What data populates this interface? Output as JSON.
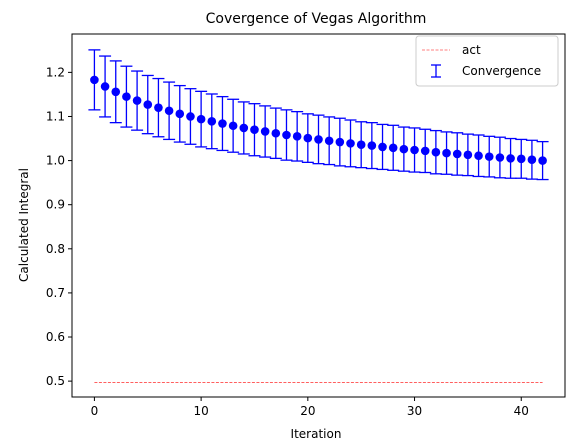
{
  "chart_data": {
    "type": "scatter",
    "title": "Covergence of Vegas Algorithm",
    "xlabel": "Iteration",
    "ylabel": "Calculated Integral",
    "xlim": [
      -2.1,
      44.1
    ],
    "ylim": [
      0.464,
      1.287
    ],
    "xticks": [
      0,
      10,
      20,
      30,
      40
    ],
    "yticks": [
      0.5,
      0.6,
      0.7,
      0.8,
      0.9,
      1.0,
      1.1,
      1.2
    ],
    "ytick_labels": [
      "0.5",
      "0.6",
      "0.7",
      "0.8",
      "0.9",
      "1.0",
      "1.1",
      "1.2"
    ],
    "grid": false,
    "legend_position": "top-right",
    "series": [
      {
        "name": "act",
        "kind": "line",
        "style": "dashed",
        "color": "#ff0000",
        "x": [
          0,
          42
        ],
        "y": [
          0.497,
          0.497
        ]
      },
      {
        "name": "Convergence",
        "kind": "errorbar",
        "color": "#0000ff",
        "x": [
          0,
          1,
          2,
          3,
          4,
          5,
          6,
          7,
          8,
          9,
          10,
          11,
          12,
          13,
          14,
          15,
          16,
          17,
          18,
          19,
          20,
          21,
          22,
          23,
          24,
          25,
          26,
          27,
          28,
          29,
          30,
          31,
          32,
          33,
          34,
          35,
          36,
          37,
          38,
          39,
          40,
          41,
          42
        ],
        "y": [
          1.183,
          1.168,
          1.156,
          1.145,
          1.136,
          1.127,
          1.12,
          1.113,
          1.106,
          1.1,
          1.094,
          1.089,
          1.084,
          1.079,
          1.074,
          1.07,
          1.066,
          1.062,
          1.058,
          1.055,
          1.051,
          1.048,
          1.045,
          1.042,
          1.039,
          1.036,
          1.034,
          1.031,
          1.029,
          1.026,
          1.024,
          1.022,
          1.019,
          1.017,
          1.015,
          1.013,
          1.011,
          1.009,
          1.007,
          1.005,
          1.004,
          1.002,
          1.0
        ],
        "yerr": [
          0.068,
          0.069,
          0.07,
          0.069,
          0.067,
          0.066,
          0.066,
          0.065,
          0.064,
          0.063,
          0.063,
          0.062,
          0.061,
          0.06,
          0.059,
          0.059,
          0.058,
          0.057,
          0.057,
          0.056,
          0.055,
          0.055,
          0.054,
          0.054,
          0.053,
          0.052,
          0.052,
          0.051,
          0.051,
          0.05,
          0.05,
          0.049,
          0.049,
          0.048,
          0.048,
          0.047,
          0.047,
          0.046,
          0.046,
          0.045,
          0.044,
          0.044,
          0.043
        ]
      }
    ]
  }
}
